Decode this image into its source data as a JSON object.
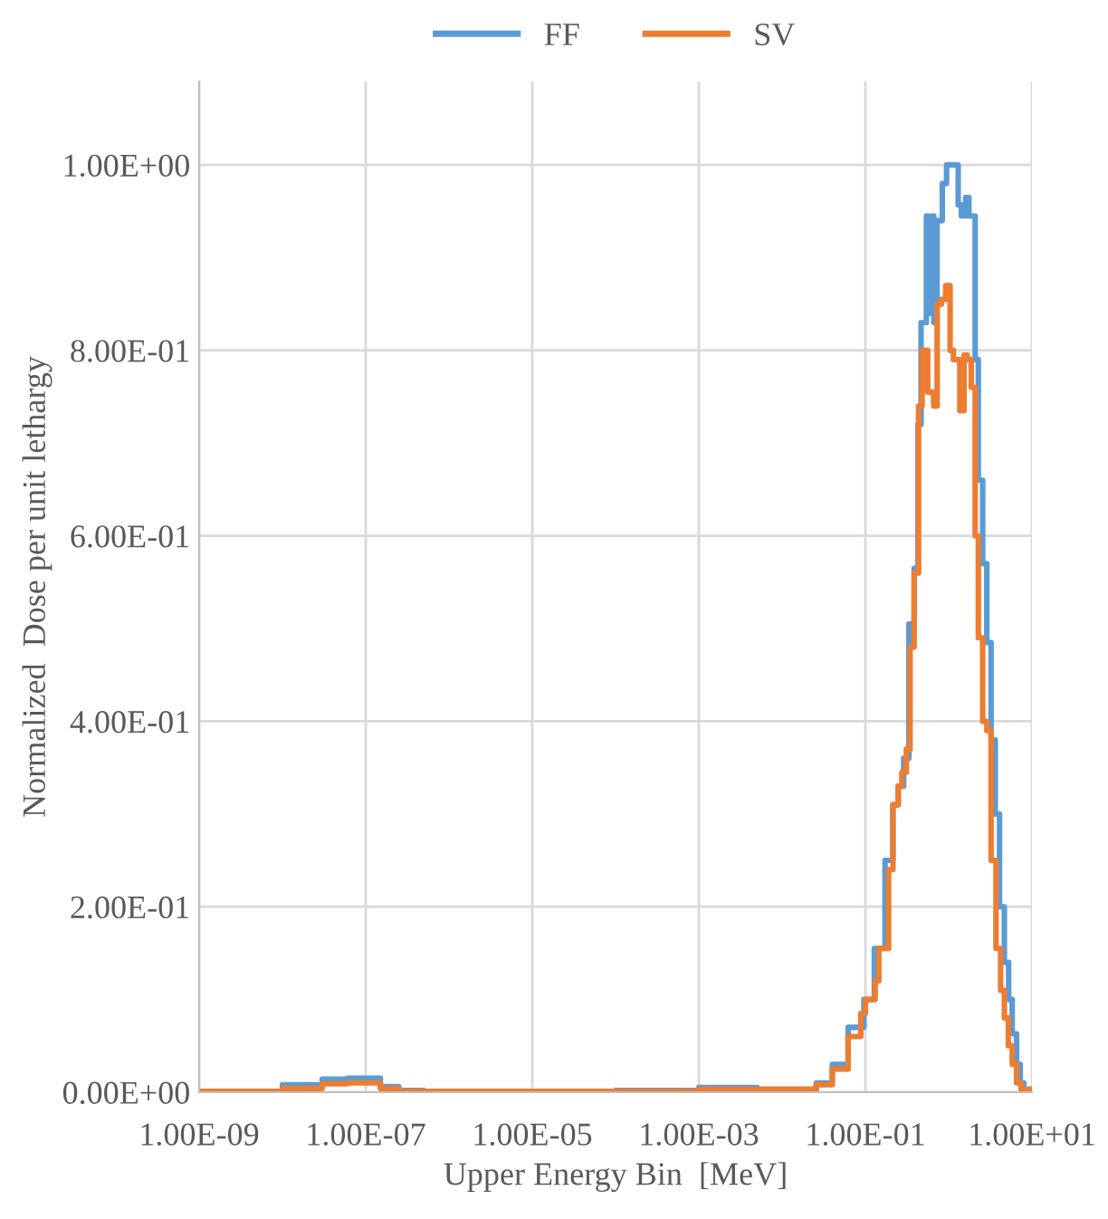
{
  "chart_data": {
    "type": "step",
    "xlabel": "Upper Energy Bin  [MeV]",
    "ylabel": "Normalized  Dose per unit lethargy",
    "log": "x",
    "xlim": [
      1e-09,
      10
    ],
    "ylim": [
      0,
      1.09
    ],
    "xticks": [
      {
        "value": 1e-09,
        "label": "1.00E-09"
      },
      {
        "value": 1e-07,
        "label": "1.00E-07"
      },
      {
        "value": 1e-05,
        "label": "1.00E-05"
      },
      {
        "value": 0.001,
        "label": "1.00E-03"
      },
      {
        "value": 0.1,
        "label": "1.00E-01"
      },
      {
        "value": 10,
        "label": "1.00E+01"
      }
    ],
    "yticks": [
      {
        "value": 0,
        "label": "0.00E+00"
      },
      {
        "value": 0.2,
        "label": "2.00E-01"
      },
      {
        "value": 0.4,
        "label": "4.00E-01"
      },
      {
        "value": 0.6,
        "label": "6.00E-01"
      },
      {
        "value": 0.8,
        "label": "8.00E-01"
      },
      {
        "value": 1.0,
        "label": "1.00E+00"
      }
    ],
    "grid": true,
    "legend": "top",
    "series": [
      {
        "name": "FF",
        "color": "#5b9bd5",
        "x": [
          1e-09,
          1e-08,
          3e-08,
          6e-08,
          1.5e-07,
          2.5e-07,
          5e-07,
          1e-06,
          0.0001,
          0.001,
          0.005,
          0.0257,
          0.04,
          0.062,
          0.096,
          0.128,
          0.172,
          0.214,
          0.248,
          0.288,
          0.333,
          0.385,
          0.427,
          0.466,
          0.54,
          0.572,
          0.626,
          0.663,
          0.725,
          0.839,
          0.943,
          1.09,
          1.3,
          1.42,
          1.6,
          1.75,
          2.08,
          2.27,
          2.56,
          2.87,
          3.23,
          3.63,
          4.08,
          4.66,
          5.25,
          5.79,
          6.53,
          7.24,
          8.0,
          8.66,
          10
        ],
        "values": [
          0,
          0.001,
          0.008,
          0.014,
          0.015,
          0.006,
          0.002,
          0.001,
          0.001,
          0.002,
          0.005,
          0.003,
          0.01,
          0.03,
          0.07,
          0.1,
          0.155,
          0.25,
          0.31,
          0.33,
          0.36,
          0.505,
          0.565,
          0.72,
          0.83,
          0.945,
          0.84,
          0.945,
          0.83,
          0.94,
          0.98,
          1.0,
          1.0,
          0.957,
          0.945,
          0.965,
          0.945,
          0.79,
          0.66,
          0.57,
          0.485,
          0.38,
          0.3,
          0.2,
          0.14,
          0.1,
          0.063,
          0.03,
          0.01,
          0.003,
          0.003
        ]
      },
      {
        "name": "SV",
        "color": "#ed7d31",
        "x": [
          1e-09,
          1e-08,
          3e-08,
          6e-08,
          1.5e-07,
          2.5e-07,
          5e-07,
          1e-06,
          0.0001,
          0.001,
          0.005,
          0.0257,
          0.04,
          0.062,
          0.088,
          0.1,
          0.131,
          0.145,
          0.19,
          0.214,
          0.248,
          0.274,
          0.31,
          0.344,
          0.385,
          0.435,
          0.48,
          0.56,
          0.66,
          0.727,
          0.82,
          0.92,
          1.04,
          1.14,
          1.36,
          1.53,
          1.67,
          1.87,
          2.08,
          2.27,
          2.56,
          2.87,
          3.23,
          3.7,
          4.2,
          4.66,
          5.2,
          5.79,
          6.53,
          7.4,
          8.3,
          10
        ],
        "values": [
          0,
          0.001,
          0.004,
          0.009,
          0.01,
          0.004,
          0.001,
          0.001,
          0.001,
          0.001,
          0.003,
          0.003,
          0.008,
          0.025,
          0.06,
          0.085,
          0.1,
          0.12,
          0.155,
          0.24,
          0.31,
          0.33,
          0.345,
          0.37,
          0.48,
          0.56,
          0.74,
          0.8,
          0.755,
          0.74,
          0.85,
          0.855,
          0.87,
          0.8,
          0.79,
          0.735,
          0.795,
          0.79,
          0.76,
          0.6,
          0.49,
          0.4,
          0.39,
          0.25,
          0.155,
          0.11,
          0.08,
          0.05,
          0.03,
          0.01,
          0.003,
          0.003
        ]
      }
    ]
  }
}
